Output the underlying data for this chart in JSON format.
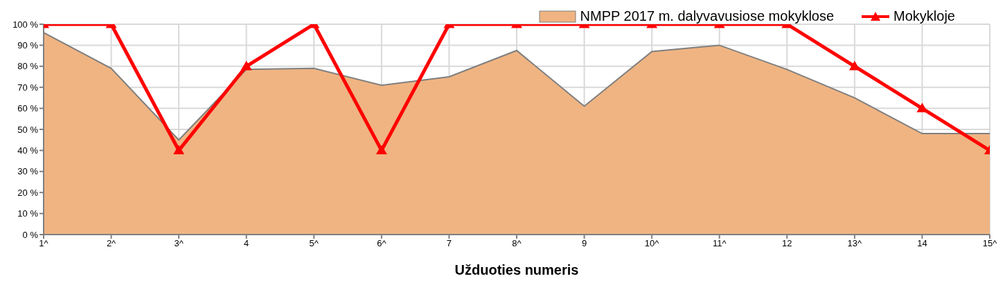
{
  "chart_data": {
    "type": "area",
    "xlabel": "Užduoties numeris",
    "categories": [
      "1^",
      "2^",
      "3^",
      "4",
      "5^",
      "6^",
      "7",
      "8^",
      "9",
      "10^",
      "11^",
      "12",
      "13^",
      "14",
      "15^"
    ],
    "series": [
      {
        "name": "NMPP 2017 m. dalyvavusiose mokyklose",
        "color": "#f0b482",
        "values": [
          96,
          79,
          45,
          78.5,
          79,
          71,
          75,
          87.5,
          61,
          87,
          90,
          78.5,
          65,
          48,
          48
        ]
      },
      {
        "name": "Mokykloje",
        "type": "line",
        "color": "#ff0000",
        "marker": "triangle",
        "values": [
          100,
          100,
          40,
          80,
          100,
          40,
          100,
          100,
          100,
          100,
          100,
          100,
          80,
          60,
          40
        ]
      }
    ],
    "ylim": [
      0,
      100
    ],
    "yticks": [
      {
        "value": 0,
        "label": "0 %"
      },
      {
        "value": 10,
        "label": "10 %"
      },
      {
        "value": 20,
        "label": "20 %"
      },
      {
        "value": 30,
        "label": "30 %"
      },
      {
        "value": 40,
        "label": "40 %"
      },
      {
        "value": 50,
        "label": "50 %"
      },
      {
        "value": 60,
        "label": "60 %"
      },
      {
        "value": 70,
        "label": "70 %"
      },
      {
        "value": 80,
        "label": "80 %"
      },
      {
        "value": 90,
        "label": "90 %"
      },
      {
        "value": 100,
        "label": "100 %"
      }
    ],
    "grid": true,
    "legend": "top right"
  }
}
